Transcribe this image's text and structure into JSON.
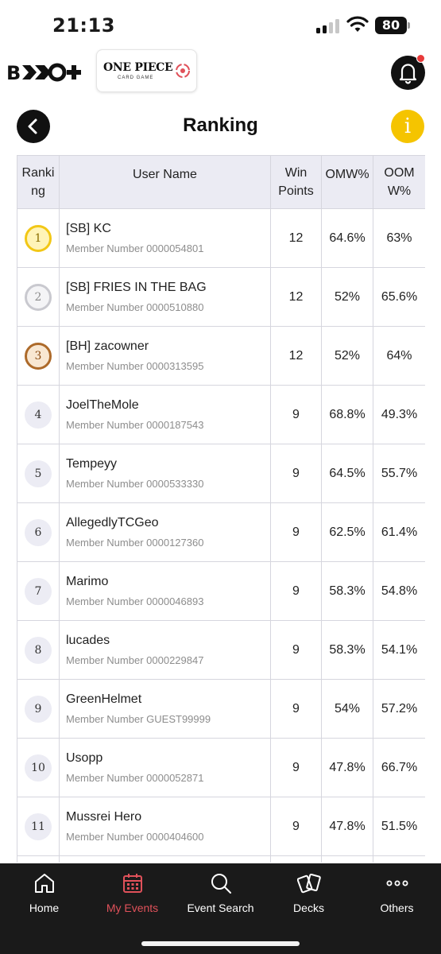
{
  "status_bar": {
    "time": "21:13",
    "battery": "80"
  },
  "header": {
    "brand_logo": "B-TCG+",
    "game_logo_title": "ONE PIECE",
    "game_logo_subtitle": "CARD GAME"
  },
  "page": {
    "title": "Ranking",
    "back_icon": "chevron-left-icon",
    "info_icon": "info-icon",
    "info_glyph": "i"
  },
  "table": {
    "columns": {
      "ranking": "Ranking",
      "user_name": "User Name",
      "win_points": "Win Points",
      "omw": "OMW%",
      "oomw": "OOMW%"
    },
    "member_prefix": "Member Number",
    "rows": [
      {
        "rank": "1",
        "name": "[SB] KC",
        "member": "0000054801",
        "win_points": "12",
        "omw": "64.6%",
        "oomw": "63%"
      },
      {
        "rank": "2",
        "name": "[SB] FRIES IN THE BAG",
        "member": "0000510880",
        "win_points": "12",
        "omw": "52%",
        "oomw": "65.6%"
      },
      {
        "rank": "3",
        "name": "[BH] zacowner",
        "member": "0000313595",
        "win_points": "12",
        "omw": "52%",
        "oomw": "64%"
      },
      {
        "rank": "4",
        "name": "JoelTheMole",
        "member": "0000187543",
        "win_points": "9",
        "omw": "68.8%",
        "oomw": "49.3%"
      },
      {
        "rank": "5",
        "name": "Tempeyy",
        "member": "0000533330",
        "win_points": "9",
        "omw": "64.5%",
        "oomw": "55.7%"
      },
      {
        "rank": "6",
        "name": "AllegedlyTCGeo",
        "member": "0000127360",
        "win_points": "9",
        "omw": "62.5%",
        "oomw": "61.4%"
      },
      {
        "rank": "7",
        "name": "Marimo",
        "member": "0000046893",
        "win_points": "9",
        "omw": "58.3%",
        "oomw": "54.8%"
      },
      {
        "rank": "8",
        "name": "lucades",
        "member": "0000229847",
        "win_points": "9",
        "omw": "58.3%",
        "oomw": "54.1%"
      },
      {
        "rank": "9",
        "name": "GreenHelmet",
        "member": "GUEST99999",
        "win_points": "9",
        "omw": "54%",
        "oomw": "57.2%"
      },
      {
        "rank": "10",
        "name": "Usopp",
        "member": "0000052871",
        "win_points": "9",
        "omw": "47.8%",
        "oomw": "66.7%"
      },
      {
        "rank": "11",
        "name": "Mussrei Hero",
        "member": "0000404600",
        "win_points": "9",
        "omw": "47.8%",
        "oomw": "51.5%"
      }
    ]
  },
  "tab_bar": {
    "active_color": "#e0515a",
    "tabs": [
      {
        "label": "Home",
        "icon": "home-icon"
      },
      {
        "label": "My Events",
        "icon": "calendar-icon",
        "active": true
      },
      {
        "label": "Event Search",
        "icon": "search-icon"
      },
      {
        "label": "Decks",
        "icon": "cards-icon"
      },
      {
        "label": "Others",
        "icon": "more-icon"
      }
    ]
  }
}
